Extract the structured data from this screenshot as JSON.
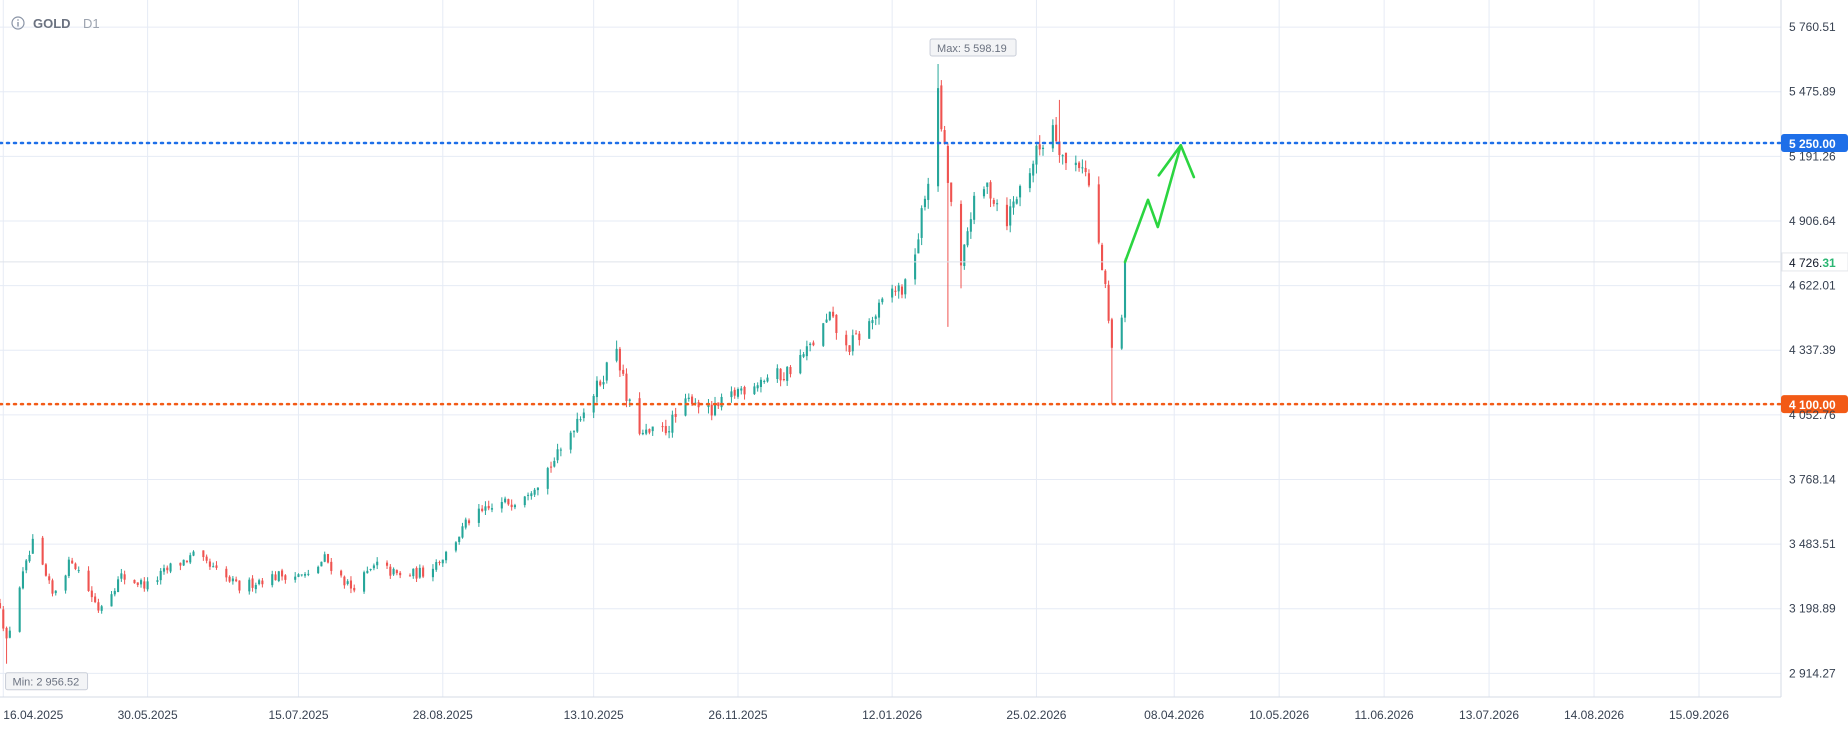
{
  "header": {
    "symbol": "GOLD",
    "timeframe": "D1",
    "info_icon": "info-icon"
  },
  "colors": {
    "up": "#26a69a",
    "down": "#ef5350",
    "resistance": "#1e6fe8",
    "support": "#f25a16",
    "projection": "#2bd540",
    "grid": "#e6ebf5",
    "axis_text": "#374151",
    "last_price_digits": "#2bb673"
  },
  "chart_data": {
    "type": "candlestick",
    "title": "GOLD",
    "subtitle": "D1",
    "y_ticks": [
      2914.27,
      3198.89,
      3483.51,
      3768.14,
      4052.76,
      4337.39,
      4622.01,
      4906.64,
      5191.26,
      5475.89,
      5760.51
    ],
    "y_tick_labels": [
      "2 914.27",
      "3 198.89",
      "3 483.51",
      "3 768.14",
      "4 052.76",
      "4 337.39",
      "4 622.01",
      "4 906.64",
      "5 191.26",
      "5 475.89",
      "5 760.51"
    ],
    "x_ticks": [
      "2025-04-16",
      "2025-05-30",
      "2025-07-15",
      "2025-08-28",
      "2025-10-13",
      "2025-11-26",
      "2026-01-12",
      "2026-02-25",
      "2026-04-08",
      "2026-05-10",
      "2026-06-11",
      "2026-07-13",
      "2026-08-14",
      "2026-09-15"
    ],
    "x_tick_labels": [
      "16.04.2025",
      "30.05.2025",
      "15.07.2025",
      "28.08.2025",
      "13.10.2025",
      "26.11.2025",
      "12.01.2026",
      "25.02.2026",
      "08.04.2026",
      "10.05.2026",
      "11.06.2026",
      "13.07.2026",
      "14.08.2026",
      "15.09.2026"
    ],
    "x_range": [
      "2025-04-15",
      "2026-10-10"
    ],
    "y_range": [
      2810,
      5880
    ],
    "grid": true,
    "max_label": "Max: 5 598.19",
    "max_value": 5598.19,
    "max_date": "2026-01-26",
    "min_label": "Min: 2 956.52",
    "min_value": 2956.52,
    "min_date": "2025-04-17",
    "horizontal_lines": [
      {
        "value": 5250.0,
        "label": "5 250.00",
        "role": "resistance"
      },
      {
        "value": 4100.0,
        "label": "4 100.00",
        "role": "support"
      }
    ],
    "last_price": {
      "value": 4726.31,
      "label_main": "4 726.",
      "label_digits": "31"
    },
    "projection_path": [
      {
        "date": "2026-03-24",
        "value": 4726
      },
      {
        "date": "2026-03-31",
        "value": 5000
      },
      {
        "date": "2026-04-03",
        "value": 4880
      },
      {
        "date": "2026-04-10",
        "value": 5240
      },
      {
        "date": "2026-04-14",
        "value": 5100
      }
    ],
    "anchors": [
      [
        "2025-04-15",
        3220,
        3000
      ],
      [
        "2025-04-17",
        3050,
        2956.52
      ],
      [
        "2025-04-21",
        3300,
        3280
      ],
      [
        "2025-04-25",
        3480,
        3300
      ],
      [
        "2025-05-01",
        3260,
        3200
      ],
      [
        "2025-05-07",
        3420,
        3390
      ],
      [
        "2025-05-15",
        3200,
        3130
      ],
      [
        "2025-05-22",
        3340,
        3260
      ],
      [
        "2025-05-30",
        3300,
        3270
      ],
      [
        "2025-06-06",
        3380,
        3310
      ],
      [
        "2025-06-13",
        3430,
        3380
      ],
      [
        "2025-06-20",
        3360,
        3320
      ],
      [
        "2025-06-27",
        3290,
        3250
      ],
      [
        "2025-07-04",
        3330,
        3300
      ],
      [
        "2025-07-11",
        3350,
        3330
      ],
      [
        "2025-07-18",
        3340,
        3310
      ],
      [
        "2025-07-23",
        3420,
        3400
      ],
      [
        "2025-07-31",
        3290,
        3280
      ],
      [
        "2025-08-08",
        3390,
        3380
      ],
      [
        "2025-08-15",
        3340,
        3330
      ],
      [
        "2025-08-22",
        3360,
        3350
      ],
      [
        "2025-08-29",
        3440,
        3430
      ],
      [
        "2025-09-05",
        3590,
        3580
      ],
      [
        "2025-09-12",
        3640,
        3630
      ],
      [
        "2025-09-19",
        3680,
        3670
      ],
      [
        "2025-09-26",
        3760,
        3750
      ],
      [
        "2025-10-03",
        3890,
        3880
      ],
      [
        "2025-10-08",
        4040,
        4030
      ],
      [
        "2025-10-14",
        4170,
        4160
      ],
      [
        "2025-10-20",
        4360,
        4350
      ],
      [
        "2025-10-23",
        4120,
        4100
      ],
      [
        "2025-10-28",
        3960,
        3940
      ],
      [
        "2025-11-04",
        3990,
        3980
      ],
      [
        "2025-11-12",
        4130,
        4120
      ],
      [
        "2025-11-18",
        4060,
        4050
      ],
      [
        "2025-11-26",
        4160,
        4150
      ],
      [
        "2025-12-03",
        4210,
        4200
      ],
      [
        "2025-12-10",
        4230,
        4220
      ],
      [
        "2025-12-17",
        4330,
        4320
      ],
      [
        "2025-12-24",
        4480,
        4470
      ],
      [
        "2025-12-29",
        4340,
        4320
      ],
      [
        "2026-01-05",
        4450,
        4440
      ],
      [
        "2026-01-12",
        4600,
        4590
      ],
      [
        "2026-01-16",
        4610,
        4600
      ],
      [
        "2026-01-20",
        4840,
        4830
      ],
      [
        "2026-01-23",
        5100,
        5090
      ],
      [
        "2026-01-26",
        5450,
        5440
      ],
      [
        "2026-01-29",
        5080,
        5040
      ],
      [
        "2026-02-02",
        4680,
        4650
      ],
      [
        "2026-02-05",
        4950,
        4930
      ],
      [
        "2026-02-10",
        5060,
        5050
      ],
      [
        "2026-02-16",
        4920,
        4910
      ],
      [
        "2026-02-20",
        5050,
        5040
      ],
      [
        "2026-02-25",
        5200,
        5190
      ],
      [
        "2026-03-02",
        5340,
        5320
      ],
      [
        "2026-03-06",
        5150,
        5140
      ],
      [
        "2026-03-11",
        5170,
        5160
      ],
      [
        "2026-03-14",
        5000,
        4990
      ],
      [
        "2026-03-18",
        4590,
        4560
      ],
      [
        "2026-03-20",
        4330,
        4130
      ],
      [
        "2026-03-23",
        4500,
        4490
      ],
      [
        "2026-03-24",
        4726.31,
        4720
      ]
    ]
  }
}
